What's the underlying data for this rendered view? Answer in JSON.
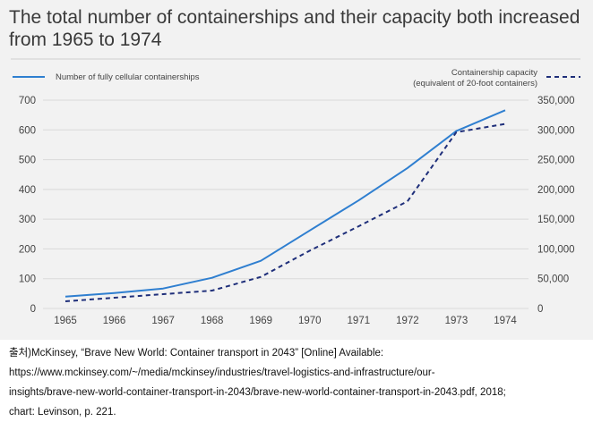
{
  "chart_data": {
    "type": "line",
    "title": "The total number of containerships and their capacity both increased from 1965 to 1974",
    "x": [
      "1965",
      "1966",
      "1967",
      "1968",
      "1969",
      "1970",
      "1971",
      "1972",
      "1973",
      "1974"
    ],
    "series": [
      {
        "name": "Number of fully cellular containerships",
        "axis": "left",
        "style": "solid",
        "values": [
          40,
          52,
          67,
          103,
          160,
          262,
          363,
          472,
          596,
          666
        ]
      },
      {
        "name": "Containership capacity (equivalent of 20-foot containers)",
        "name_line1": "Containership capacity",
        "name_line2": "(equivalent of 20-foot containers)",
        "axis": "right",
        "style": "dashed",
        "values": [
          12000,
          18000,
          24000,
          30000,
          53000,
          97000,
          138000,
          180000,
          296000,
          310000
        ]
      }
    ],
    "ylim_left": [
      0,
      700
    ],
    "yticks_left": [
      0,
      100,
      200,
      300,
      400,
      500,
      600,
      700
    ],
    "ylim_right": [
      0,
      350000
    ],
    "yticks_right": [
      "0",
      "50,000",
      "100,000",
      "150,000",
      "200,000",
      "250,000",
      "300,000",
      "350,000"
    ],
    "legend": "top",
    "grid": "y"
  },
  "colors": {
    "line": "#2f7fd0",
    "dashed": "#1f2f7a",
    "grid": "#d9d9d9"
  },
  "source": {
    "line1": "출처)McKinsey, “Brave New World: Container transport in 2043” [Online] Available:",
    "line2": "https://www.mckinsey.com/~/media/mckinsey/industries/travel-logistics-and-infrastructure/our-",
    "line3": "insights/brave-new-world-container-transport-in-2043/brave-new-world-container-transport-in-2043.pdf, 2018;",
    "line4": "chart: Levinson, p. 221."
  }
}
